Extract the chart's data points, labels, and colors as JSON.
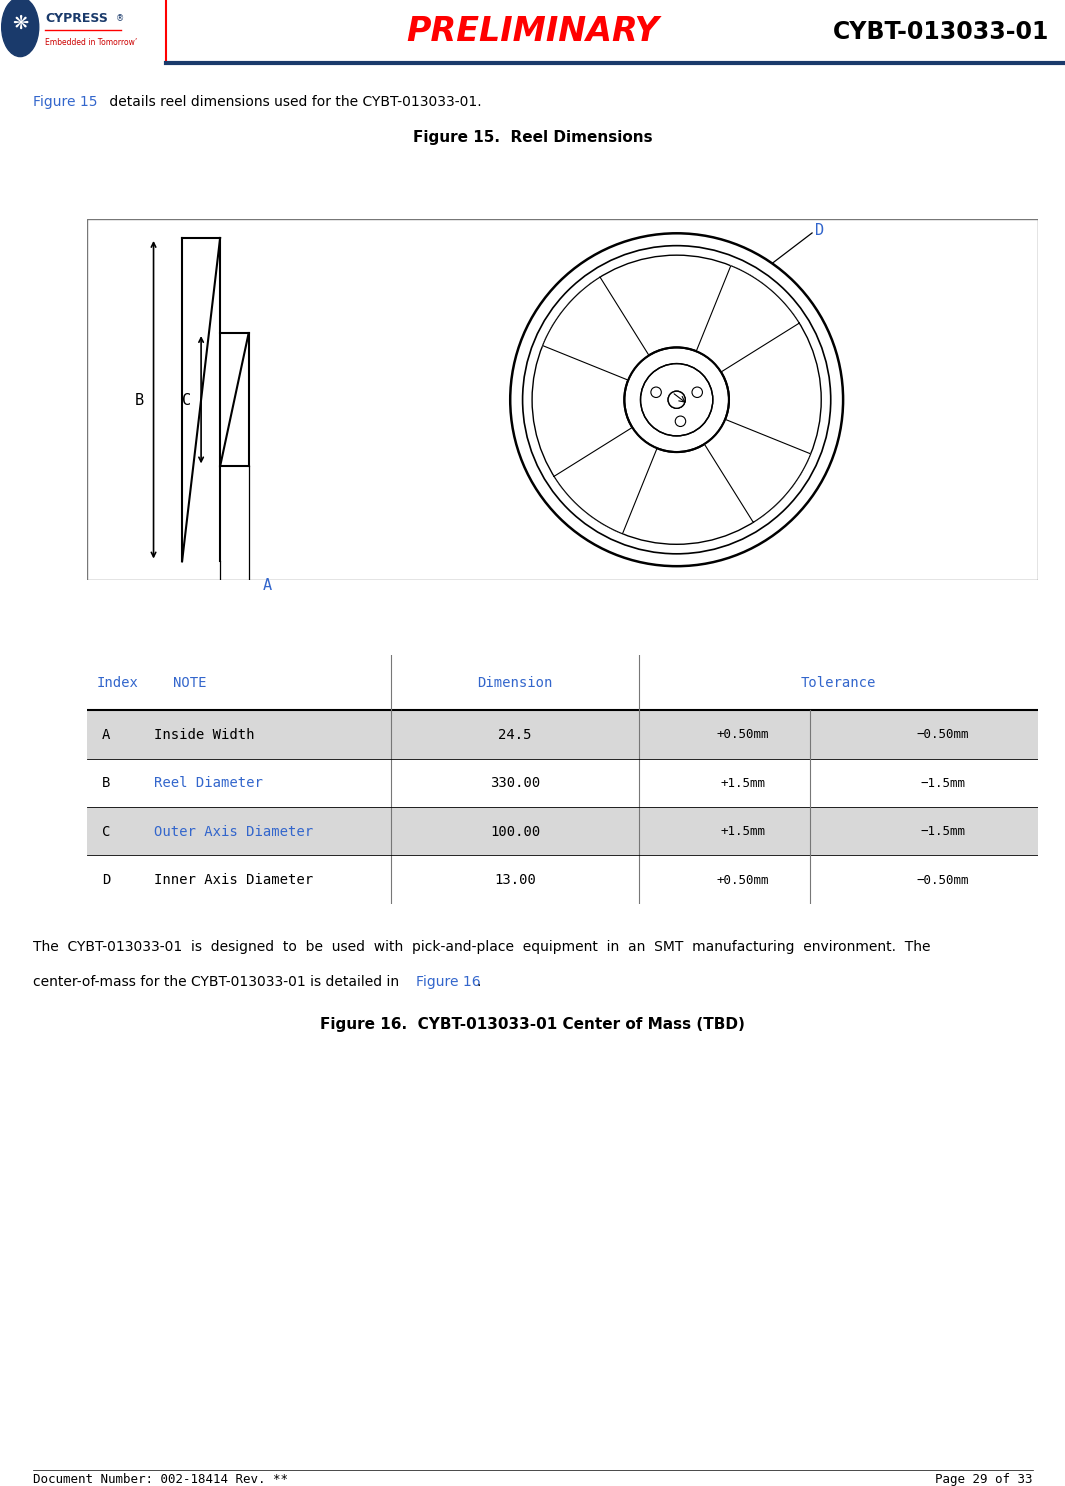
{
  "title_preliminary": "PRELIMINARY",
  "title_product": "CYBT-013033-01",
  "doc_number": "Document Number: 002-18414 Rev. **",
  "page_info": "Page 29 of 33",
  "fig15_caption_prefix": "Figure 15",
  "fig15_caption_rest": " details reel dimensions used for the CYBT-013033-01.",
  "fig15_title": "Figure 15.  Reel Dimensions",
  "fig16_caption_line1": "The  CYBT-013033-01  is  designed  to  be  used  with  pick-and-place  equipment  in  an  SMT  manufacturing  environment.  The",
  "fig16_caption_line2_pre": "center-of-mass for the CYBT-013033-01 is detailed in ",
  "fig16_caption_link": "Figure 16",
  "fig16_caption_end": ".",
  "fig16_title": "Figure 16.  CYBT-013033-01 Center of Mass (TBD)",
  "table_headers": [
    "Index  NOTE",
    "Dimension",
    "Tolerance"
  ],
  "table_rows": [
    [
      "A",
      "Inside Width",
      "24.5",
      "+0.50mm",
      "−0.50mm"
    ],
    [
      "B",
      "Reel Diameter",
      "330.00",
      "+1.5mm",
      "−1.5mm"
    ],
    [
      "C",
      "Outer Axis Diameter",
      "100.00",
      "+1.5mm",
      "−1.5mm"
    ],
    [
      "D",
      "Inner Axis Diameter",
      "13.00",
      "+0.50mm",
      "−0.50mm"
    ]
  ],
  "link_color": "#3366CC",
  "preliminary_color": "#FF0000",
  "product_color": "#000000",
  "navy_color": "#1a3a6b",
  "line_color": "#000000",
  "table_header_color": "#3366CC",
  "table_row_alt_colors": [
    "#d8d8d8",
    "#ffffff",
    "#d8d8d8",
    "#ffffff"
  ],
  "background": "#ffffff"
}
